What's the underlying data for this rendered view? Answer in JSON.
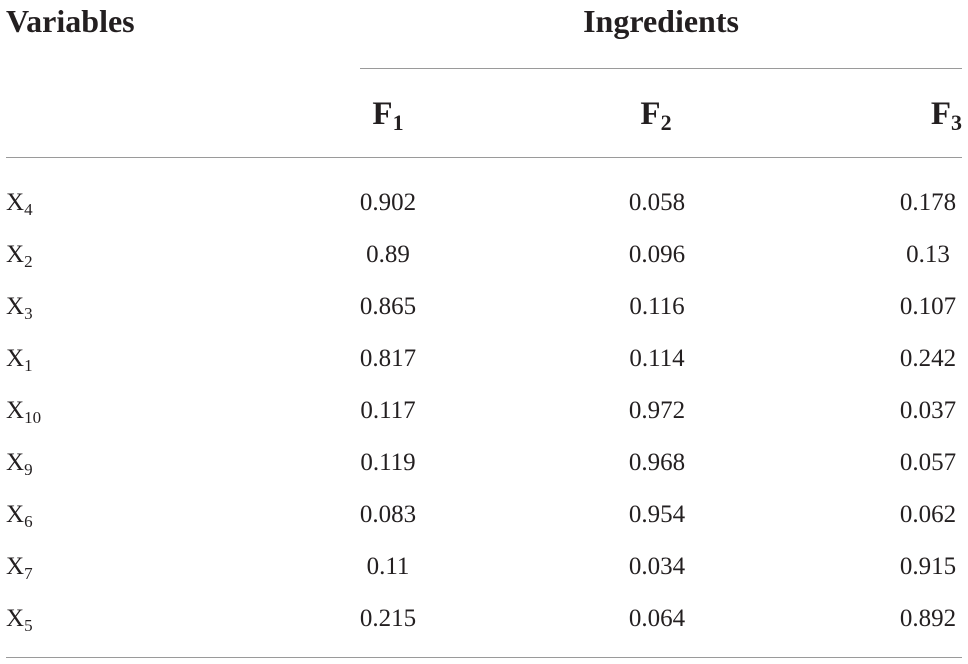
{
  "table": {
    "header_variables": "Variables",
    "header_group": "Ingredients",
    "columns": [
      {
        "base": "F",
        "sub": "1"
      },
      {
        "base": "F",
        "sub": "2"
      },
      {
        "base": "F",
        "sub": "3"
      }
    ],
    "rows": [
      {
        "var_base": "X",
        "var_sub": "4",
        "f1": "0.902",
        "f2": "0.058",
        "f3": "0.178"
      },
      {
        "var_base": "X",
        "var_sub": "2",
        "f1": "0.89",
        "f2": "0.096",
        "f3": "0.13"
      },
      {
        "var_base": "X",
        "var_sub": "3",
        "f1": "0.865",
        "f2": "0.116",
        "f3": "0.107"
      },
      {
        "var_base": "X",
        "var_sub": "1",
        "f1": "0.817",
        "f2": "0.114",
        "f3": "0.242"
      },
      {
        "var_base": "X",
        "var_sub": "10",
        "f1": "0.117",
        "f2": "0.972",
        "f3": "0.037"
      },
      {
        "var_base": "X",
        "var_sub": "9",
        "f1": "0.119",
        "f2": "0.968",
        "f3": "0.057"
      },
      {
        "var_base": "X",
        "var_sub": "6",
        "f1": "0.083",
        "f2": "0.954",
        "f3": "0.062"
      },
      {
        "var_base": "X",
        "var_sub": "7",
        "f1": "0.11",
        "f2": "0.034",
        "f3": "0.915"
      },
      {
        "var_base": "X",
        "var_sub": "5",
        "f1": "0.215",
        "f2": "0.064",
        "f3": "0.892"
      }
    ]
  }
}
